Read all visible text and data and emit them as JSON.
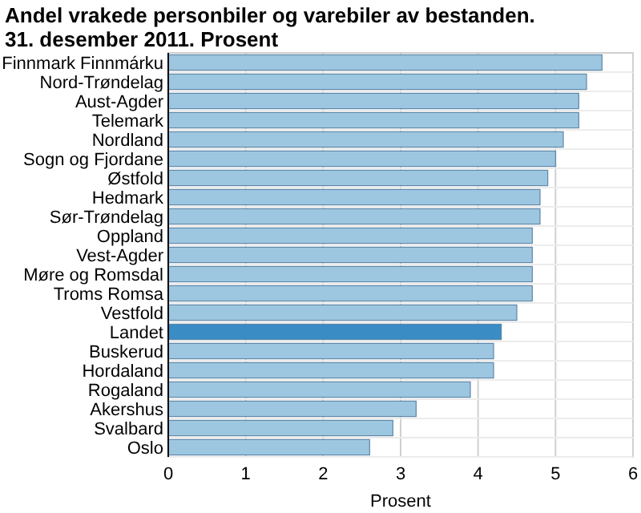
{
  "chart_data": {
    "type": "bar",
    "orientation": "horizontal",
    "title": "Andel vrakede personbiler og varebiler av bestanden.",
    "subtitle": "31. desember 2011. Prosent",
    "xlabel": "Prosent",
    "categories": [
      "Finnmark Finnmárku",
      "Nord-Trøndelag",
      "Aust-Agder",
      "Telemark",
      "Nordland",
      "Sogn og Fjordane",
      "Østfold",
      "Hedmark",
      "Sør-Trøndelag",
      "Oppland",
      "Vest-Agder",
      "Møre og Romsdal",
      "Troms Romsa",
      "Vestfold",
      "Landet",
      "Buskerud",
      "Hordaland",
      "Rogaland",
      "Akershus",
      "Svalbard",
      "Oslo"
    ],
    "values": [
      5.6,
      5.4,
      5.3,
      5.3,
      5.1,
      5.0,
      4.9,
      4.8,
      4.8,
      4.7,
      4.7,
      4.7,
      4.7,
      4.5,
      4.3,
      4.2,
      4.2,
      3.9,
      3.2,
      2.9,
      2.6
    ],
    "colors": [
      "#9dc6e0",
      "#9dc6e0",
      "#9dc6e0",
      "#9dc6e0",
      "#9dc6e0",
      "#9dc6e0",
      "#9dc6e0",
      "#9dc6e0",
      "#9dc6e0",
      "#9dc6e0",
      "#9dc6e0",
      "#9dc6e0",
      "#9dc6e0",
      "#9dc6e0",
      "#3a8cc4",
      "#9dc6e0",
      "#9dc6e0",
      "#9dc6e0",
      "#9dc6e0",
      "#9dc6e0",
      "#9dc6e0"
    ],
    "xlim": [
      0,
      6
    ],
    "xticks": [
      0,
      1,
      2,
      3,
      4,
      5,
      6
    ],
    "grid": "x"
  }
}
